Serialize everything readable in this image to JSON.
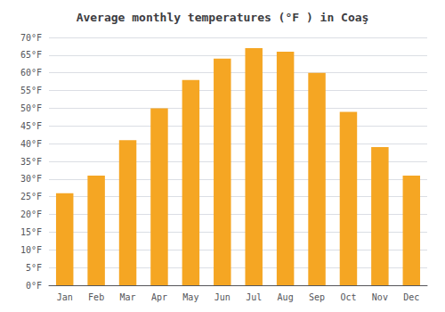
{
  "chart_data": {
    "type": "bar",
    "title": "Average monthly temperatures (°F ) in Coaş",
    "categories": [
      "Jan",
      "Feb",
      "Mar",
      "Apr",
      "May",
      "Jun",
      "Jul",
      "Aug",
      "Sep",
      "Oct",
      "Nov",
      "Dec"
    ],
    "values": [
      26,
      31,
      41,
      50,
      58,
      64,
      67,
      66,
      60,
      49,
      39,
      31
    ],
    "color": "#F5A623",
    "ylim": [
      0,
      70
    ],
    "yticks": [
      {
        "value": 0,
        "label": "0°F"
      },
      {
        "value": 5,
        "label": "5°F"
      },
      {
        "value": 10,
        "label": "10°F"
      },
      {
        "value": 15,
        "label": "15°F"
      },
      {
        "value": 20,
        "label": "20°F"
      },
      {
        "value": 25,
        "label": "25°F"
      },
      {
        "value": 30,
        "label": "30°F"
      },
      {
        "value": 35,
        "label": "35°F"
      },
      {
        "value": 40,
        "label": "40°F"
      },
      {
        "value": 45,
        "label": "45°F"
      },
      {
        "value": 50,
        "label": "50°F"
      },
      {
        "value": 55,
        "label": "55°F"
      },
      {
        "value": 60,
        "label": "60°F"
      },
      {
        "value": 65,
        "label": "65°F"
      },
      {
        "value": 70,
        "label": "70°F"
      }
    ],
    "grid": true
  }
}
